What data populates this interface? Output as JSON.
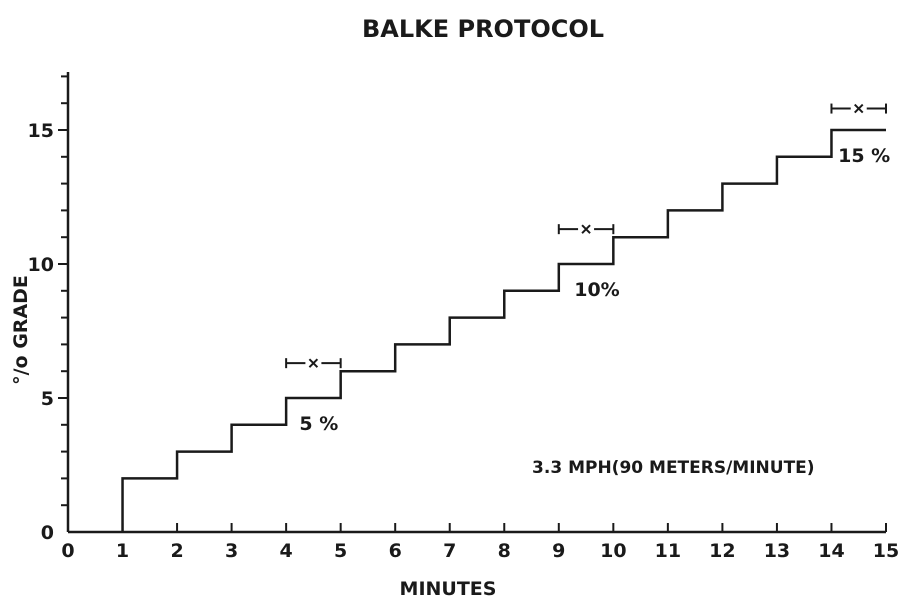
{
  "chart_data": {
    "type": "line",
    "title": "BALKE PROTOCOL",
    "xlabel": "MINUTES",
    "ylabel": "°/o GRADE",
    "xlim": [
      0,
      15
    ],
    "ylim": [
      0,
      17
    ],
    "x_ticks": [
      0,
      1,
      2,
      3,
      4,
      5,
      6,
      7,
      8,
      9,
      10,
      11,
      12,
      13,
      14,
      15
    ],
    "y_ticks": [
      0,
      5,
      10,
      15
    ],
    "grid": false,
    "steps": [
      {
        "x": 1,
        "y": 2
      },
      {
        "x": 2,
        "y": 3
      },
      {
        "x": 3,
        "y": 4
      },
      {
        "x": 4,
        "y": 5
      },
      {
        "x": 5,
        "y": 6
      },
      {
        "x": 6,
        "y": 7
      },
      {
        "x": 7,
        "y": 8
      },
      {
        "x": 8,
        "y": 9
      },
      {
        "x": 9,
        "y": 10
      },
      {
        "x": 10,
        "y": 11
      },
      {
        "x": 11,
        "y": 12
      },
      {
        "x": 12,
        "y": 13
      },
      {
        "x": 13,
        "y": 14
      },
      {
        "x": 14,
        "y": 15
      }
    ],
    "step_end_x": 15,
    "markers": [
      {
        "x_from": 4,
        "x_to": 5,
        "x_mid": 4.5,
        "y": 6.3,
        "label": "5 %",
        "label_x": 4.6,
        "label_y": 3.8
      },
      {
        "x_from": 9,
        "x_to": 10,
        "x_mid": 9.5,
        "y": 11.3,
        "label": "10%",
        "label_x": 9.7,
        "label_y": 8.8
      },
      {
        "x_from": 14,
        "x_to": 15,
        "x_mid": 14.5,
        "y": 15.8,
        "label": "15 %",
        "label_x": 14.6,
        "label_y": 13.8
      }
    ],
    "annotation": {
      "text": "3.3 MPH(90 METERS/MINUTE)",
      "x": 11.1,
      "y": 2.2
    }
  },
  "colors": {
    "ink": "#1a1a1a",
    "background": "#ffffff"
  }
}
